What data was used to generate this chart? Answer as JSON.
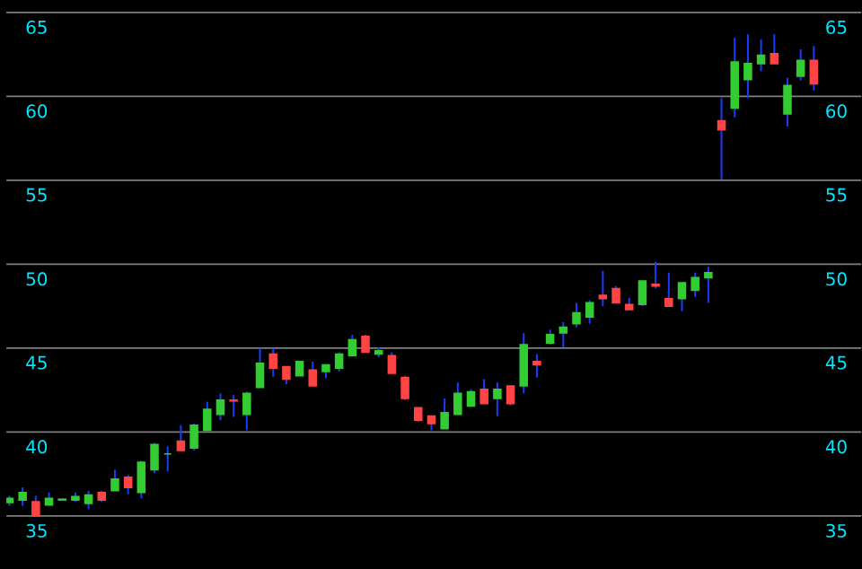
{
  "chart_data": {
    "type": "candlestick",
    "categories": [
      null,
      null,
      null,
      null,
      null,
      null,
      null,
      null,
      null,
      null,
      null,
      null,
      null,
      null,
      null,
      null,
      null,
      null,
      null,
      null,
      null,
      null,
      null,
      null,
      null,
      null,
      null,
      null,
      null,
      null,
      null,
      null,
      null,
      null,
      null,
      null,
      null,
      null,
      null,
      null,
      null,
      null,
      null,
      null,
      null,
      null,
      null,
      null,
      null,
      null,
      null,
      null,
      null,
      null,
      null,
      null,
      null,
      null,
      null,
      null,
      null,
      null
    ],
    "ohlc": [
      [
        35.8,
        36.2,
        35.6,
        36.05
      ],
      [
        35.95,
        36.7,
        35.6,
        36.4
      ],
      [
        35.85,
        36.2,
        35.0,
        35.0
      ],
      [
        35.65,
        36.4,
        35.65,
        36.05
      ],
      [
        35.95,
        36.0,
        35.95,
        36.0
      ],
      [
        35.95,
        36.4,
        35.85,
        36.15
      ],
      [
        35.75,
        36.5,
        35.4,
        36.25
      ],
      [
        36.4,
        36.5,
        35.85,
        35.95
      ],
      [
        36.5,
        37.75,
        36.5,
        37.2
      ],
      [
        37.3,
        37.45,
        36.3,
        36.7
      ],
      [
        36.4,
        38.3,
        36.05,
        38.2
      ],
      [
        37.75,
        39.35,
        37.55,
        39.25
      ],
      [
        38.7,
        39.15,
        37.65,
        38.7
      ],
      [
        39.45,
        40.4,
        38.9,
        38.9
      ],
      [
        39.05,
        40.5,
        38.9,
        40.4
      ],
      [
        40.1,
        41.8,
        40.1,
        41.35
      ],
      [
        41.05,
        42.3,
        40.7,
        41.9
      ],
      [
        41.9,
        42.2,
        40.9,
        41.85
      ],
      [
        41.05,
        42.4,
        40.1,
        42.3
      ],
      [
        42.65,
        45.0,
        42.65,
        44.1
      ],
      [
        44.65,
        45.0,
        43.3,
        43.8
      ],
      [
        43.9,
        43.9,
        42.85,
        43.15
      ],
      [
        43.35,
        44.25,
        43.35,
        44.2
      ],
      [
        43.7,
        44.2,
        42.75,
        42.75
      ],
      [
        43.6,
        44.0,
        43.2,
        44.0
      ],
      [
        43.8,
        44.75,
        43.6,
        44.65
      ],
      [
        44.55,
        45.8,
        44.55,
        45.5
      ],
      [
        45.7,
        45.8,
        44.75,
        44.75
      ],
      [
        44.65,
        45.05,
        44.45,
        44.85
      ],
      [
        44.55,
        44.75,
        43.5,
        43.5
      ],
      [
        43.25,
        43.35,
        41.9,
        42.0
      ],
      [
        41.45,
        41.45,
        40.6,
        40.7
      ],
      [
        40.95,
        40.95,
        40.1,
        40.5
      ],
      [
        40.2,
        42.0,
        40.2,
        41.15
      ],
      [
        41.05,
        42.95,
        41.05,
        42.3
      ],
      [
        41.55,
        42.55,
        41.55,
        42.4
      ],
      [
        42.55,
        43.15,
        41.7,
        41.7
      ],
      [
        42.0,
        42.95,
        40.95,
        42.55
      ],
      [
        42.75,
        42.75,
        41.6,
        41.7
      ],
      [
        42.75,
        45.9,
        42.3,
        45.2
      ],
      [
        44.2,
        44.65,
        43.25,
        44.0
      ],
      [
        45.3,
        46.1,
        45.2,
        45.8
      ],
      [
        45.9,
        46.55,
        45.05,
        46.25
      ],
      [
        46.45,
        47.7,
        46.25,
        47.1
      ],
      [
        46.85,
        47.85,
        46.45,
        47.7
      ],
      [
        48.15,
        49.6,
        47.5,
        47.95
      ],
      [
        48.55,
        48.7,
        47.7,
        47.7
      ],
      [
        47.6,
        48.0,
        47.3,
        47.3
      ],
      [
        47.6,
        49.0,
        47.5,
        49.0
      ],
      [
        48.8,
        50.15,
        48.55,
        48.7
      ],
      [
        47.95,
        49.5,
        47.5,
        47.5
      ],
      [
        47.95,
        48.9,
        47.2,
        48.9
      ],
      [
        48.45,
        49.5,
        48.05,
        49.2
      ],
      [
        49.2,
        49.85,
        47.7,
        49.5
      ],
      [
        58.55,
        59.9,
        55.05,
        58.0
      ],
      [
        59.3,
        63.5,
        58.75,
        62.05
      ],
      [
        61.0,
        63.7,
        59.9,
        61.95
      ],
      [
        61.95,
        63.4,
        61.5,
        62.45
      ],
      [
        62.55,
        63.7,
        61.95,
        61.95
      ],
      [
        58.95,
        61.1,
        58.2,
        60.65
      ],
      [
        61.2,
        62.8,
        60.95,
        62.15
      ],
      [
        62.15,
        63.0,
        60.35,
        60.75
      ]
    ],
    "colors": [
      "#33cc33",
      "#33cc33",
      "#ff4444",
      "#33cc33",
      "#33cc33",
      "#33cc33",
      "#33cc33",
      "#ff4444",
      "#33cc33",
      "#ff4444",
      "#33cc33",
      "#33cc33",
      "#33cc33",
      "#ff4444",
      "#33cc33",
      "#33cc33",
      "#33cc33",
      "#ff4444",
      "#33cc33",
      "#33cc33",
      "#ff4444",
      "#ff4444",
      "#33cc33",
      "#ff4444",
      "#33cc33",
      "#33cc33",
      "#33cc33",
      "#ff4444",
      "#33cc33",
      "#ff4444",
      "#ff4444",
      "#ff4444",
      "#ff4444",
      "#33cc33",
      "#33cc33",
      "#33cc33",
      "#ff4444",
      "#33cc33",
      "#ff4444",
      "#33cc33",
      "#ff4444",
      "#33cc33",
      "#33cc33",
      "#33cc33",
      "#33cc33",
      "#ff4444",
      "#ff4444",
      "#ff4444",
      "#33cc33",
      "#ff4444",
      "#ff4444",
      "#33cc33",
      "#33cc33",
      "#33cc33",
      "#ff4444",
      "#33cc33",
      "#33cc33",
      "#33cc33",
      "#ff4444",
      "#33cc33",
      "#33cc33",
      "#ff4444"
    ],
    "color": "#1a3cff",
    "ylim": [
      31.8,
      65
    ],
    "yticks": [
      35,
      40,
      45,
      50,
      55,
      60,
      65
    ],
    "y2lim": [
      31.8,
      65
    ],
    "y2ticks": [
      35,
      40,
      45,
      50,
      55,
      60,
      65
    ],
    "grid": "y"
  }
}
